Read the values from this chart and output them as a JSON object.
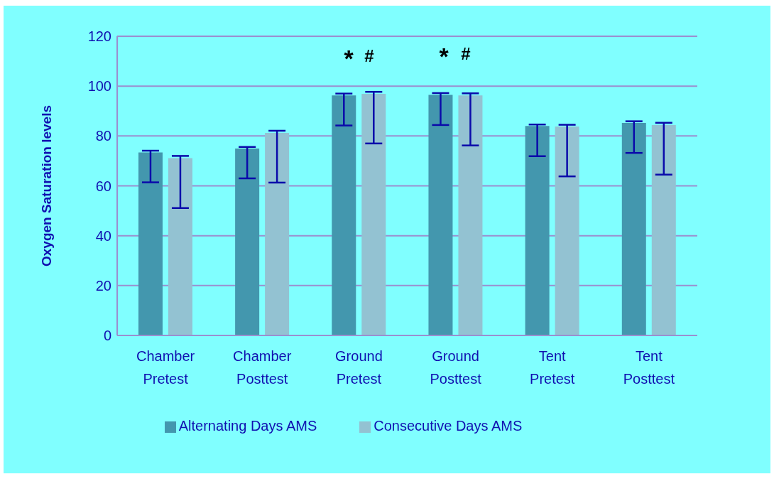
{
  "chart_data": {
    "type": "bar",
    "ylabel": "Oxygen Saturation levels",
    "categories": [
      "Chamber Pretest",
      "Chamber Posttest",
      "Ground Pretest",
      "Ground Posttest",
      "Tent Pretest",
      "Tent Posttest"
    ],
    "series": [
      {
        "name": "Alternating Days AMS",
        "color": "#4397ae",
        "values": [
          73.4,
          75.0,
          96.3,
          96.5,
          84.0,
          85.2
        ],
        "errors": [
          [
            61.4,
            74.1
          ],
          [
            63.0,
            75.6
          ],
          [
            84.2,
            97.0
          ],
          [
            84.4,
            97.2
          ],
          [
            71.9,
            84.6
          ],
          [
            73.2,
            85.9
          ]
        ]
      },
      {
        "name": "Consecutive Days AMS",
        "color": "#93c2d2",
        "values": [
          71.1,
          81.2,
          96.9,
          96.3,
          83.8,
          84.4
        ],
        "errors": [
          [
            51.1,
            72.0
          ],
          [
            61.3,
            82.1
          ],
          [
            77.0,
            97.7
          ],
          [
            76.2,
            97.1
          ],
          [
            63.8,
            84.5
          ],
          [
            64.5,
            85.3
          ]
        ]
      }
    ],
    "ylim": [
      0,
      120
    ],
    "yticks": [
      0,
      20,
      40,
      60,
      80,
      100,
      120
    ],
    "grid": "y",
    "legend": "bottom",
    "annotations": [
      "*",
      "#",
      "*",
      "#"
    ]
  }
}
